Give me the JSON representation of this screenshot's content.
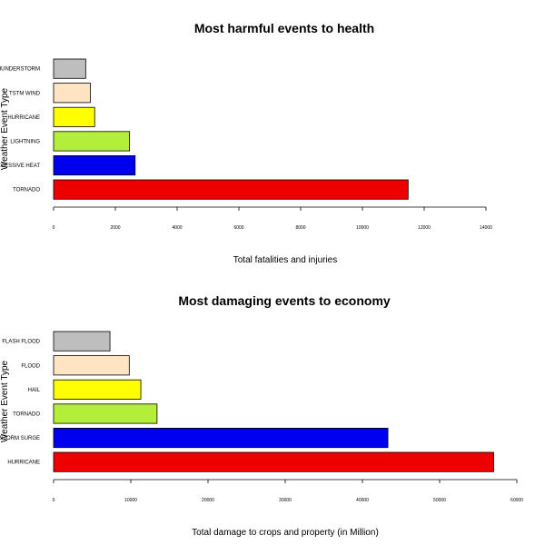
{
  "chart_data": [
    {
      "type": "bar",
      "orientation": "horizontal",
      "title": "Most harmful events to health",
      "xlabel": "Total fatalities and injuries",
      "ylabel": "Weather Event Type",
      "categories": [
        "TORNADO",
        "EXCESSIVE HEAT",
        "LIGHTNING",
        "HURRICANE",
        "TSTM WIND",
        "THUNDERSTORM"
      ],
      "values": [
        11480,
        2640,
        2460,
        1330,
        1190,
        1040
      ],
      "colors": [
        "#ee0000",
        "#0000ee",
        "#b3ee3a",
        "#ffff00",
        "#ffe4c4",
        "#bebebe"
      ],
      "xlim": [
        0,
        14000
      ],
      "xticks": [
        0,
        2000,
        4000,
        6000,
        8000,
        10000,
        12000,
        14000
      ],
      "grid": false,
      "legend": "none"
    },
    {
      "type": "bar",
      "orientation": "horizontal",
      "title": "Most damaging events to economy",
      "xlabel": "Total damage to crops and property (in Million)",
      "ylabel": "Weather Event Type",
      "categories": [
        "HURRICANE",
        "STORM SURGE",
        "TORNADO",
        "HAIL",
        "FLOOD",
        "FLASH FLOOD"
      ],
      "values": [
        57000,
        43300,
        13400,
        11300,
        9800,
        7300
      ],
      "colors": [
        "#ee0000",
        "#0000ee",
        "#b3ee3a",
        "#ffff00",
        "#ffe4c4",
        "#bebebe"
      ],
      "xlim": [
        0,
        60000
      ],
      "xticks": [
        0,
        10000,
        20000,
        30000,
        40000,
        50000,
        60000
      ],
      "grid": false,
      "legend": "none"
    }
  ]
}
